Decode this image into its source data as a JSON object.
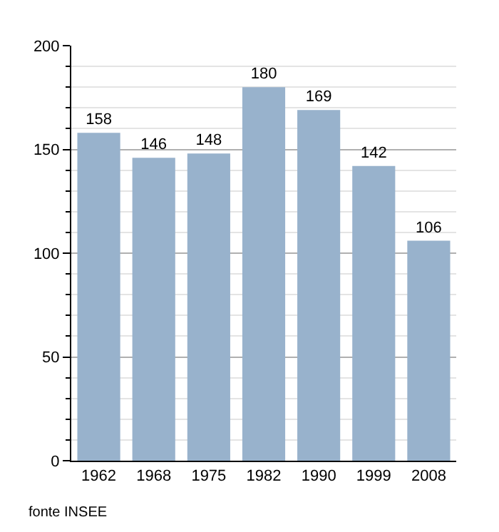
{
  "chart_data": {
    "type": "bar",
    "categories": [
      "1962",
      "1968",
      "1975",
      "1982",
      "1990",
      "1999",
      "2008"
    ],
    "values": [
      158,
      146,
      148,
      180,
      169,
      142,
      106
    ],
    "color": "#98b2cc",
    "data_labels": true,
    "ylim": [
      0,
      200
    ],
    "yticks": [
      0,
      {
        "value": 10,
        "label": null
      },
      {
        "value": 20,
        "label": null
      },
      {
        "value": 30,
        "label": null
      },
      {
        "value": 40,
        "label": null
      },
      50,
      {
        "value": 60,
        "label": null
      },
      {
        "value": 70,
        "label": null
      },
      {
        "value": 80,
        "label": null
      },
      {
        "value": 90,
        "label": null
      },
      100,
      {
        "value": 110,
        "label": null
      },
      {
        "value": 120,
        "label": null
      },
      {
        "value": 130,
        "label": null
      },
      {
        "value": 140,
        "label": null
      },
      150,
      {
        "value": 160,
        "label": null
      },
      {
        "value": 170,
        "label": null
      },
      {
        "value": 180,
        "label": null
      },
      {
        "value": 190,
        "label": null
      },
      200
    ],
    "grid": "y",
    "annotations": [
      "fonte INSEE"
    ]
  }
}
